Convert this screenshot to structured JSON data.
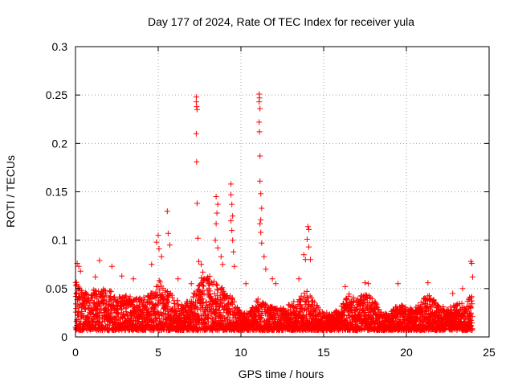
{
  "chart_data": {
    "type": "scatter",
    "title": "Day 177 of 2024, Rate Of TEC Index for receiver yula",
    "xlabel": "GPS time / hours",
    "ylabel": "ROTI / TECUs",
    "xlim": [
      0,
      25
    ],
    "ylim": [
      0,
      0.3
    ],
    "xticks": [
      0,
      5,
      10,
      15,
      20,
      25
    ],
    "xtick_labels": [
      "0",
      "5",
      "10",
      "15",
      "20",
      "25"
    ],
    "yticks": [
      0,
      0.05,
      0.1,
      0.15,
      0.2,
      0.25,
      0.3
    ],
    "ytick_labels": [
      "0",
      "0.05",
      "0.1",
      "0.15",
      "0.2",
      "0.25",
      "0.3"
    ],
    "grid": true,
    "marker": "+",
    "color": "#ff0000",
    "series": [
      {
        "name": "ROTI",
        "baseline_profile": {
          "hours": [
            0,
            0.5,
            1,
            1.5,
            2,
            2.5,
            3,
            3.5,
            4,
            4.5,
            5,
            5.5,
            6,
            6.5,
            7,
            7.5,
            8,
            8.5,
            9,
            9.5,
            10,
            10.5,
            11,
            11.5,
            12,
            12.5,
            13,
            13.5,
            14,
            14.5,
            15,
            15.5,
            16,
            16.5,
            17,
            17.5,
            18,
            18.5,
            19,
            19.5,
            20,
            20.5,
            21,
            21.5,
            22,
            22.5,
            23,
            23.5,
            24
          ],
          "typical_max": [
            0.06,
            0.045,
            0.05,
            0.05,
            0.05,
            0.04,
            0.045,
            0.04,
            0.04,
            0.045,
            0.06,
            0.05,
            0.04,
            0.035,
            0.04,
            0.06,
            0.065,
            0.055,
            0.05,
            0.04,
            0.025,
            0.025,
            0.04,
            0.035,
            0.03,
            0.03,
            0.035,
            0.04,
            0.05,
            0.035,
            0.025,
            0.025,
            0.03,
            0.045,
            0.04,
            0.045,
            0.04,
            0.025,
            0.025,
            0.035,
            0.03,
            0.03,
            0.04,
            0.045,
            0.035,
            0.03,
            0.035,
            0.035,
            0.045
          ]
        },
        "spikes": [
          {
            "x": 0.1,
            "y": 0.076
          },
          {
            "x": 0.2,
            "y": 0.073
          },
          {
            "x": 0.3,
            "y": 0.068
          },
          {
            "x": 1.45,
            "y": 0.079
          },
          {
            "x": 1.2,
            "y": 0.062
          },
          {
            "x": 2.2,
            "y": 0.073
          },
          {
            "x": 2.8,
            "y": 0.063
          },
          {
            "x": 3.5,
            "y": 0.06
          },
          {
            "x": 4.6,
            "y": 0.075
          },
          {
            "x": 4.9,
            "y": 0.098
          },
          {
            "x": 5.0,
            "y": 0.105
          },
          {
            "x": 5.05,
            "y": 0.091
          },
          {
            "x": 5.2,
            "y": 0.083
          },
          {
            "x": 5.55,
            "y": 0.13
          },
          {
            "x": 5.6,
            "y": 0.107
          },
          {
            "x": 5.7,
            "y": 0.095
          },
          {
            "x": 6.2,
            "y": 0.06
          },
          {
            "x": 7.0,
            "y": 0.055
          },
          {
            "x": 7.3,
            "y": 0.248
          },
          {
            "x": 7.3,
            "y": 0.243
          },
          {
            "x": 7.32,
            "y": 0.238
          },
          {
            "x": 7.35,
            "y": 0.235
          },
          {
            "x": 7.3,
            "y": 0.21
          },
          {
            "x": 7.32,
            "y": 0.181
          },
          {
            "x": 7.35,
            "y": 0.138
          },
          {
            "x": 7.4,
            "y": 0.102
          },
          {
            "x": 7.45,
            "y": 0.078
          },
          {
            "x": 7.6,
            "y": 0.075
          },
          {
            "x": 7.7,
            "y": 0.067
          },
          {
            "x": 8.0,
            "y": 0.06
          },
          {
            "x": 8.5,
            "y": 0.145
          },
          {
            "x": 8.6,
            "y": 0.137
          },
          {
            "x": 8.55,
            "y": 0.128
          },
          {
            "x": 8.5,
            "y": 0.117
          },
          {
            "x": 8.45,
            "y": 0.1
          },
          {
            "x": 8.6,
            "y": 0.092
          },
          {
            "x": 8.8,
            "y": 0.083
          },
          {
            "x": 8.9,
            "y": 0.075
          },
          {
            "x": 9.4,
            "y": 0.158
          },
          {
            "x": 9.4,
            "y": 0.147
          },
          {
            "x": 9.45,
            "y": 0.137
          },
          {
            "x": 9.5,
            "y": 0.125
          },
          {
            "x": 9.4,
            "y": 0.12
          },
          {
            "x": 9.45,
            "y": 0.11
          },
          {
            "x": 9.5,
            "y": 0.1
          },
          {
            "x": 9.55,
            "y": 0.088
          },
          {
            "x": 9.6,
            "y": 0.073
          },
          {
            "x": 10.3,
            "y": 0.055
          },
          {
            "x": 11.1,
            "y": 0.251
          },
          {
            "x": 11.12,
            "y": 0.247
          },
          {
            "x": 11.1,
            "y": 0.243
          },
          {
            "x": 11.15,
            "y": 0.236
          },
          {
            "x": 11.1,
            "y": 0.222
          },
          {
            "x": 11.12,
            "y": 0.212
          },
          {
            "x": 11.15,
            "y": 0.187
          },
          {
            "x": 11.15,
            "y": 0.161
          },
          {
            "x": 11.2,
            "y": 0.148
          },
          {
            "x": 11.25,
            "y": 0.133
          },
          {
            "x": 11.2,
            "y": 0.121
          },
          {
            "x": 11.15,
            "y": 0.117
          },
          {
            "x": 11.2,
            "y": 0.108
          },
          {
            "x": 11.25,
            "y": 0.097
          },
          {
            "x": 11.4,
            "y": 0.083
          },
          {
            "x": 11.5,
            "y": 0.07
          },
          {
            "x": 11.9,
            "y": 0.06
          },
          {
            "x": 12.1,
            "y": 0.055
          },
          {
            "x": 13.5,
            "y": 0.06
          },
          {
            "x": 13.8,
            "y": 0.085
          },
          {
            "x": 13.9,
            "y": 0.08
          },
          {
            "x": 14.05,
            "y": 0.114
          },
          {
            "x": 14.1,
            "y": 0.111
          },
          {
            "x": 14.0,
            "y": 0.101
          },
          {
            "x": 14.1,
            "y": 0.093
          },
          {
            "x": 14.2,
            "y": 0.08
          },
          {
            "x": 16.3,
            "y": 0.052
          },
          {
            "x": 17.5,
            "y": 0.056
          },
          {
            "x": 17.7,
            "y": 0.055
          },
          {
            "x": 19.5,
            "y": 0.055
          },
          {
            "x": 21.3,
            "y": 0.056
          },
          {
            "x": 22.8,
            "y": 0.045
          },
          {
            "x": 23.4,
            "y": 0.05
          },
          {
            "x": 23.9,
            "y": 0.078
          },
          {
            "x": 23.95,
            "y": 0.076
          },
          {
            "x": 24.0,
            "y": 0.062
          }
        ]
      }
    ]
  }
}
